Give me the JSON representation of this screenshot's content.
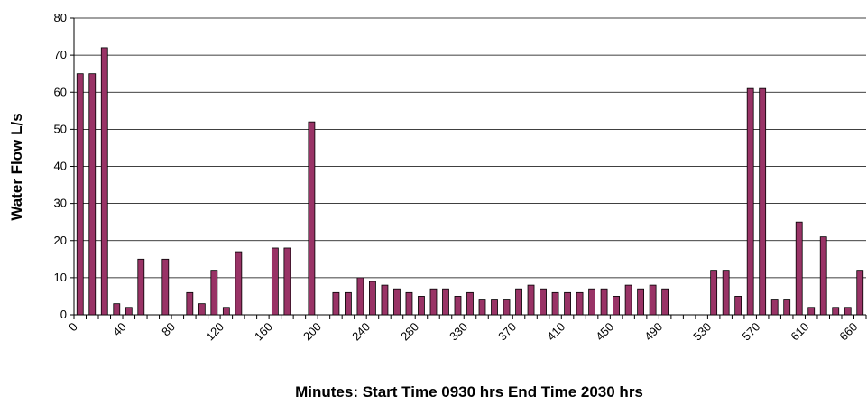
{
  "chart_data": {
    "type": "bar",
    "x_label": "Minutes: Start Time 0930 hrs    End Time 2030 hrs",
    "y_label": "Water Flow L/s",
    "categories": [
      "0",
      null,
      null,
      null,
      "40",
      null,
      null,
      null,
      "80",
      null,
      null,
      null,
      "120",
      null,
      null,
      null,
      "160",
      null,
      null,
      null,
      "200",
      null,
      null,
      null,
      "240",
      null,
      null,
      null,
      "280",
      null,
      null,
      null,
      "330",
      null,
      null,
      null,
      "370",
      null,
      null,
      null,
      "410",
      null,
      null,
      null,
      "450",
      null,
      null,
      null,
      "490",
      null,
      null,
      null,
      "530",
      null,
      null,
      null,
      "570",
      null,
      null,
      null,
      "610",
      null,
      null,
      null,
      "660"
    ],
    "values": [
      65,
      65,
      72,
      3,
      2,
      15,
      null,
      15,
      null,
      6,
      3,
      12,
      2,
      17,
      null,
      null,
      18,
      18,
      null,
      52,
      null,
      6,
      6,
      10,
      9,
      8,
      7,
      6,
      5,
      7,
      7,
      5,
      6,
      4,
      4,
      4,
      7,
      8,
      7,
      6,
      6,
      6,
      7,
      7,
      5,
      8,
      7,
      8,
      7,
      null,
      null,
      null,
      12,
      12,
      5,
      61,
      61,
      4,
      4,
      25,
      2,
      21,
      2,
      2,
      12
    ],
    "color": "#993366",
    "ylim": [
      0,
      80
    ],
    "yticks": [
      0,
      10,
      20,
      30,
      40,
      50,
      60,
      70,
      80
    ],
    "grid": true
  }
}
